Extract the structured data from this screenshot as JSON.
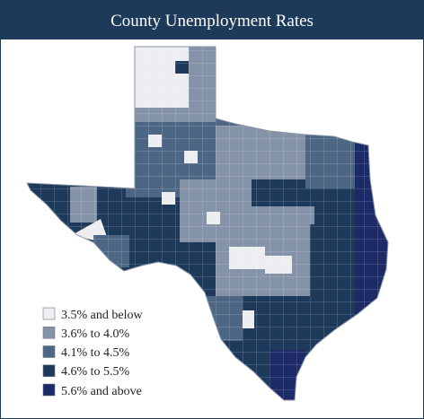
{
  "title": "County Unemployment Rates",
  "legend": {
    "items": [
      {
        "label": "3.5% and below",
        "color": "#eceef2"
      },
      {
        "label": "3.6% to 4.0%",
        "color": "#8593a8"
      },
      {
        "label": "4.1% to 4.5%",
        "color": "#4d6683"
      },
      {
        "label": "4.6% to 5.5%",
        "color": "#1d3a5b"
      },
      {
        "label": "5.6% and above",
        "color": "#1c2a68"
      }
    ]
  }
}
